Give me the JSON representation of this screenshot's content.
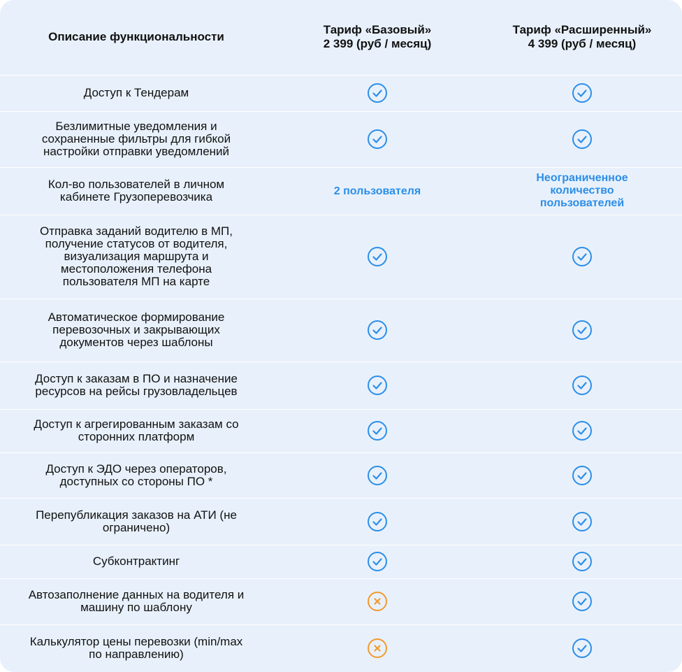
{
  "header": {
    "description": "Описание функциональности",
    "plan1_name": "Тариф «Базовый»",
    "plan1_price": "2 399 (руб / месяц)",
    "plan2_name": "Тариф «Расширенный»",
    "plan2_price": "4 399 (руб / месяц)"
  },
  "colors": {
    "check": "#2d8ee8",
    "cross": "#f29a2e",
    "background": "#e8f1fb",
    "highlight": "#2d8ee8"
  },
  "rows": [
    {
      "h": 52,
      "lines": [
        "Доступ к Тендерам"
      ],
      "basic": {
        "type": "check"
      },
      "extended": {
        "type": "check"
      }
    },
    {
      "h": 80,
      "lines": [
        "Безлимитные уведомления и",
        "сохраненные фильтры для гибкой",
        "настройки отправки уведомлений"
      ],
      "basic": {
        "type": "check"
      },
      "extended": {
        "type": "check"
      }
    },
    {
      "h": 68,
      "lines": [
        "Кол-во пользователей в личном",
        "кабинете Грузоперевозчика"
      ],
      "basic": {
        "type": "text",
        "lines": [
          "2 пользователя"
        ]
      },
      "extended": {
        "type": "text",
        "lines": [
          "Неограниченное",
          "количество",
          "пользователей"
        ]
      }
    },
    {
      "h": 120,
      "lines": [
        "Отправка заданий водителю в МП,",
        "получение статусов от водителя,",
        "визуализация маршрута и",
        "местоположения телефона",
        "пользователя МП на карте"
      ],
      "basic": {
        "type": "check"
      },
      "extended": {
        "type": "check"
      }
    },
    {
      "h": 90,
      "lines": [
        "Автоматическое формирование",
        "перевозочных и закрывающих",
        "документов через шаблоны"
      ],
      "basic": {
        "type": "check"
      },
      "extended": {
        "type": "check"
      }
    },
    {
      "h": 68,
      "lines": [
        "Доступ к заказам в ПО и назначение",
        "ресурсов на рейсы грузовладельцев"
      ],
      "basic": {
        "type": "check"
      },
      "extended": {
        "type": "check"
      }
    },
    {
      "h": 62,
      "lines": [
        "Доступ к агрегированным заказам со",
        "сторонних платформ"
      ],
      "basic": {
        "type": "check"
      },
      "extended": {
        "type": "check"
      }
    },
    {
      "h": 65,
      "lines": [
        "Доступ к ЭДО через операторов,",
        "доступных со стороны ПО *"
      ],
      "basic": {
        "type": "check"
      },
      "extended": {
        "type": "check"
      }
    },
    {
      "h": 67,
      "lines": [
        "Перепубликация заказов на АТИ (не",
        "ограничено)"
      ],
      "basic": {
        "type": "check"
      },
      "extended": {
        "type": "check"
      }
    },
    {
      "h": 48,
      "lines": [
        "Субконтрактинг"
      ],
      "basic": {
        "type": "check"
      },
      "extended": {
        "type": "check"
      }
    },
    {
      "h": 66,
      "lines": [
        "Автозаполнение данных на водителя и",
        "машину по шаблону"
      ],
      "basic": {
        "type": "cross"
      },
      "extended": {
        "type": "check"
      }
    },
    {
      "h": 68,
      "lines": [
        "Калькулятор цены перевозки (min/max",
        "по направлению)"
      ],
      "basic": {
        "type": "cross"
      },
      "extended": {
        "type": "check"
      }
    }
  ]
}
